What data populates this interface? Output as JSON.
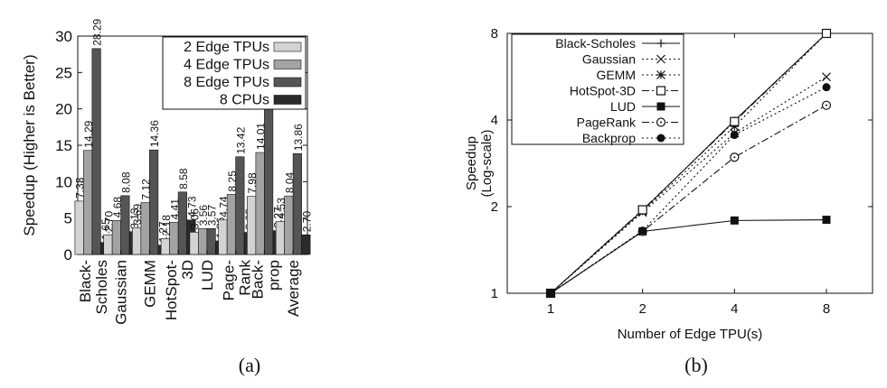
{
  "chart_data": [
    {
      "type": "bar",
      "panel_label": "(a)",
      "ylabel": "Speedup (Higher is Better)",
      "ylim": [
        0,
        30
      ],
      "yticks": [
        0,
        5,
        10,
        15,
        20,
        25,
        30
      ],
      "categories": [
        "Black-\nScholes",
        "Gaussian",
        "GEMM",
        "HotSpot-\n3D",
        "LUD",
        "Page-\nRank",
        "Back-\nprop",
        "Average"
      ],
      "series": [
        {
          "name": "2 Edge TPUs",
          "color": "#d3d3d3",
          "values": [
            7.33,
            2.7,
            3.69,
            2.18,
            3.06,
            4.74,
            7.98,
            4.53
          ],
          "labels": [
            "7.33",
            "2.70",
            "3.69",
            "2.18",
            "3.06",
            "4.74",
            "7.98",
            "4.53"
          ]
        },
        {
          "name": "4 Edge TPUs",
          "color": "#a3a3a3",
          "values": [
            14.29,
            4.68,
            7.12,
            4.41,
            3.56,
            8.25,
            14.01,
            8.04
          ],
          "labels": [
            "14.29",
            "4.68",
            "7.12",
            "4.41",
            "3.56",
            "8.25",
            "14.01",
            "8.04"
          ]
        },
        {
          "name": "8 Edge TPUs",
          "color": "#555555",
          "values": [
            28.29,
            8.08,
            14.36,
            8.58,
            3.57,
            13.42,
            20.74,
            13.86
          ],
          "labels": [
            "28.29",
            "8.08",
            "14.36",
            "8.58",
            "3.57",
            "13.42",
            "20.74",
            "13.86"
          ]
        },
        {
          "name": "8 CPUs",
          "color": "#2b2b2b",
          "values": [
            1.65,
            3.13,
            1.27,
            4.73,
            1.86,
            3.03,
            3.27,
            2.7
          ],
          "labels": [
            "1.65",
            "3.13",
            "1.27",
            "4.73",
            "1.86",
            "3.03",
            "3.27",
            "2.70"
          ]
        }
      ],
      "legend_position": "top-right",
      "grid": false
    },
    {
      "type": "line",
      "panel_label": "(b)",
      "xlabel": "Number of Edge TPU(s)",
      "ylabel": "Speedup\n(Log-scale)",
      "log_x": true,
      "log_y": true,
      "x": [
        1,
        2,
        4,
        8
      ],
      "xticks": [
        "1",
        "2",
        "4",
        "8"
      ],
      "ylim": [
        1,
        8
      ],
      "yticks": [
        1,
        2,
        4,
        8
      ],
      "series": [
        {
          "name": "Black-Scholes",
          "marker": "plus",
          "dash": "solid",
          "values": [
            1,
            1.94,
            3.98,
            8.0
          ]
        },
        {
          "name": "Gaussian",
          "marker": "x",
          "dash": "dotted",
          "values": [
            1,
            1.91,
            3.6,
            5.65
          ]
        },
        {
          "name": "GEMM",
          "marker": "star",
          "dash": "dotted",
          "values": [
            1,
            1.93,
            3.8,
            8.0
          ]
        },
        {
          "name": "HotSpot-3D",
          "marker": "square-open",
          "dash": "dashdot",
          "values": [
            1,
            1.95,
            3.95,
            8.0
          ]
        },
        {
          "name": "LUD",
          "marker": "square-filled",
          "dash": "solid",
          "values": [
            1,
            1.64,
            1.79,
            1.8
          ]
        },
        {
          "name": "PageRank",
          "marker": "circle-open",
          "dash": "dashdot",
          "values": [
            1,
            1.64,
            2.97,
            4.5
          ]
        },
        {
          "name": "Backprop",
          "marker": "circle-filled",
          "dash": "dotted",
          "values": [
            1,
            1.65,
            3.55,
            5.2
          ]
        }
      ],
      "legend_position": "top-left",
      "grid": false
    }
  ]
}
